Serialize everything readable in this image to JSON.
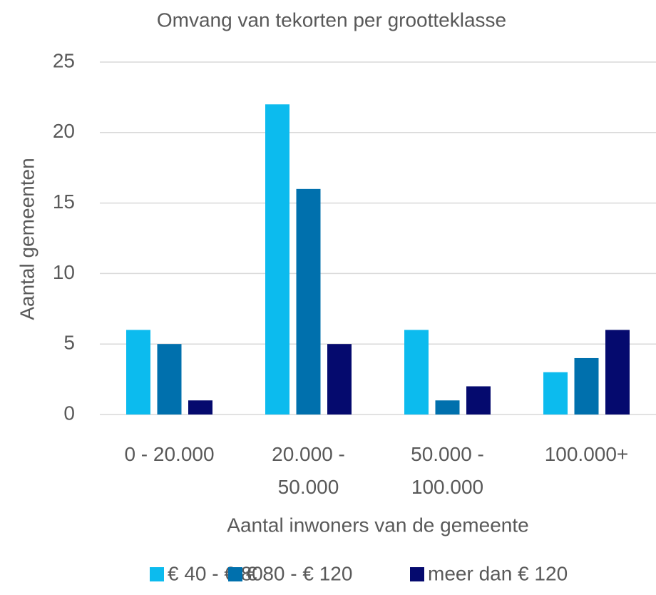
{
  "chart_data": {
    "type": "bar",
    "title": "Omvang van tekorten per grootteklasse",
    "x_label": "Aantal inwoners van de gemeente",
    "y_label": "Aantal gemeenten",
    "categories": [
      "0 - 20.000",
      "20.000 - 50.000",
      "50.000 - 100.000",
      "100.000+"
    ],
    "series": [
      {
        "name": "€ 40 - € 80",
        "color": "#0cbbee",
        "values": [
          6,
          22,
          6,
          3
        ]
      },
      {
        "name": "€ 80 - € 120",
        "color": "#0070ad",
        "values": [
          5,
          16,
          1,
          4
        ]
      },
      {
        "name": "meer dan € 120",
        "color": "#050a6e",
        "values": [
          1,
          5,
          2,
          6
        ]
      }
    ],
    "ylim": [
      0,
      25
    ],
    "yticks": [
      0,
      5,
      10,
      15,
      20,
      25
    ],
    "grid": true,
    "legend": "bottom"
  }
}
